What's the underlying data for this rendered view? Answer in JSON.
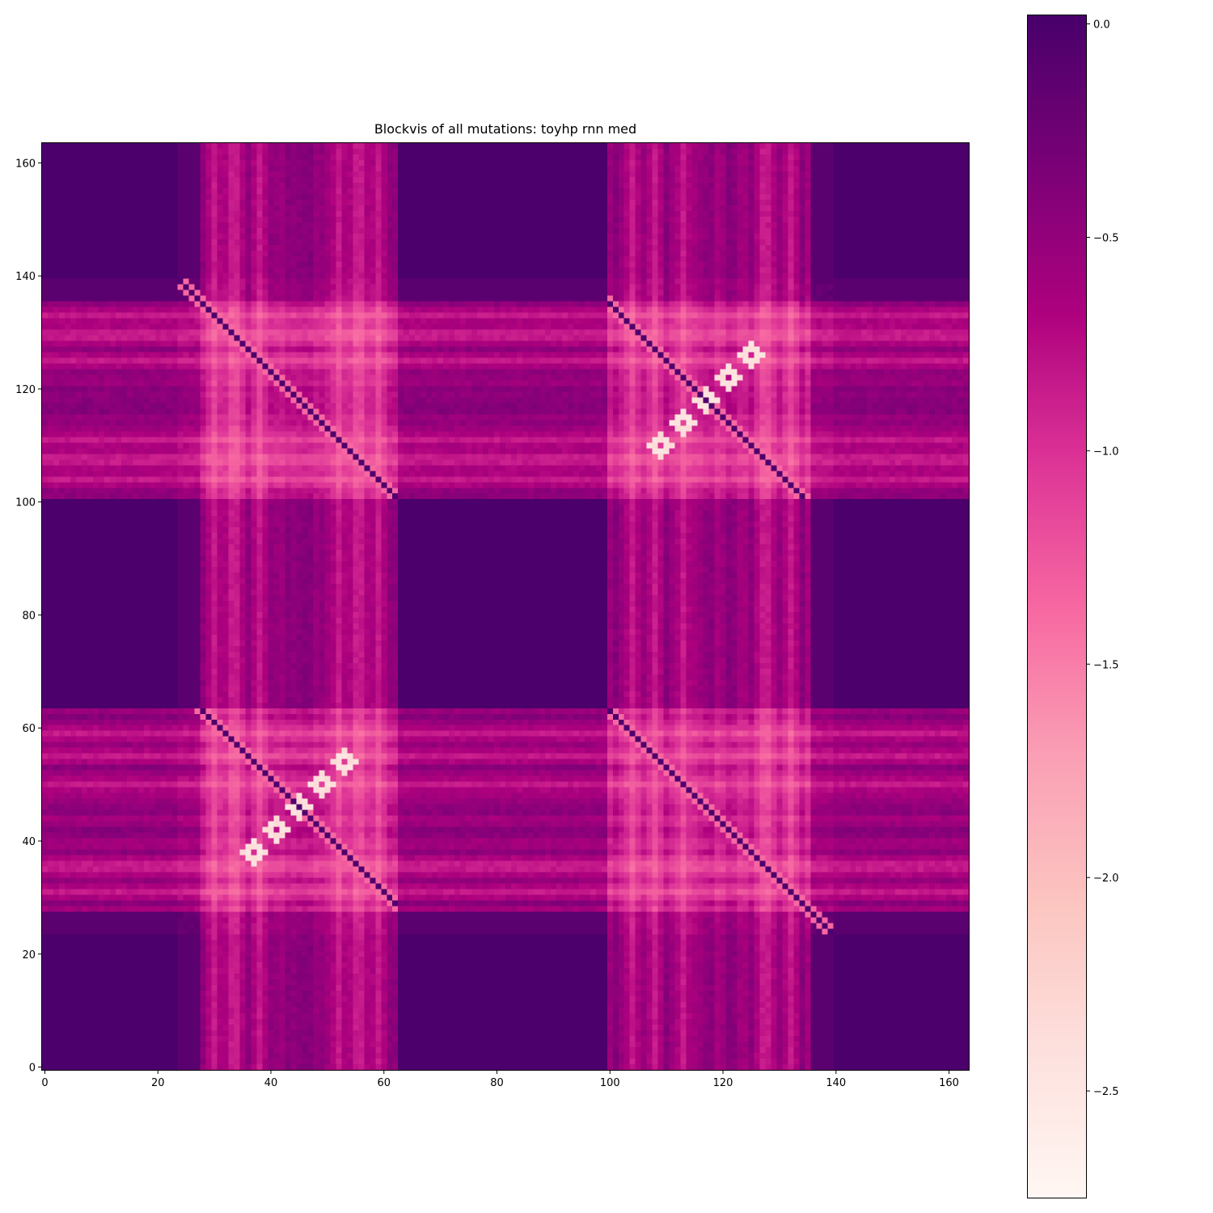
{
  "chart_data": {
    "type": "heatmap",
    "title": "Blockvis of all mutations: toyhp rnn med",
    "size": 164,
    "x_ticks": [
      0,
      20,
      40,
      60,
      80,
      100,
      120,
      140,
      160
    ],
    "y_ticks": [
      0,
      20,
      40,
      60,
      80,
      100,
      120,
      140,
      160
    ],
    "xlim": [
      -0.5,
      163.5
    ],
    "ylim": [
      163.5,
      -0.5
    ],
    "colorbar": {
      "min": -2.75,
      "max": 0.02,
      "ticks": [
        0.0,
        -0.5,
        -1.0,
        -1.5,
        -2.0,
        -2.5
      ],
      "tick_labels": [
        "0.0",
        "−0.5",
        "−1.0",
        "−1.5",
        "−2.0",
        "−2.5"
      ],
      "colormap": "RdPu",
      "colormap_stops": [
        "#fff7f3",
        "#fde0dd",
        "#fcc5c0",
        "#fa9fb5",
        "#f768a1",
        "#dd3497",
        "#ae017e",
        "#7a0177",
        "#49006a"
      ]
    },
    "structure": {
      "block_a_range": [
        0,
        27
      ],
      "block_b_range": [
        63,
        99
      ],
      "block_c_range": [
        136,
        163
      ],
      "core_quiet_range": [
        28,
        62
      ],
      "mirror_quiet_range": [
        100,
        135
      ],
      "bright_line_indices": [
        30,
        33,
        34,
        38,
        52,
        55,
        56,
        59,
        104,
        108,
        113,
        127,
        128,
        132
      ],
      "diagonal_offsets": [
        -72,
        0,
        72
      ],
      "bright_diagonal_cells": [
        [
          37,
          125
        ],
        [
          41,
          121
        ],
        [
          45,
          117
        ],
        [
          49,
          113
        ],
        [
          53,
          109
        ],
        [
          125,
          37
        ],
        [
          121,
          41
        ],
        [
          117,
          45
        ],
        [
          113,
          49
        ],
        [
          109,
          53
        ]
      ],
      "value_range": [
        -2.75,
        0.0
      ]
    }
  }
}
